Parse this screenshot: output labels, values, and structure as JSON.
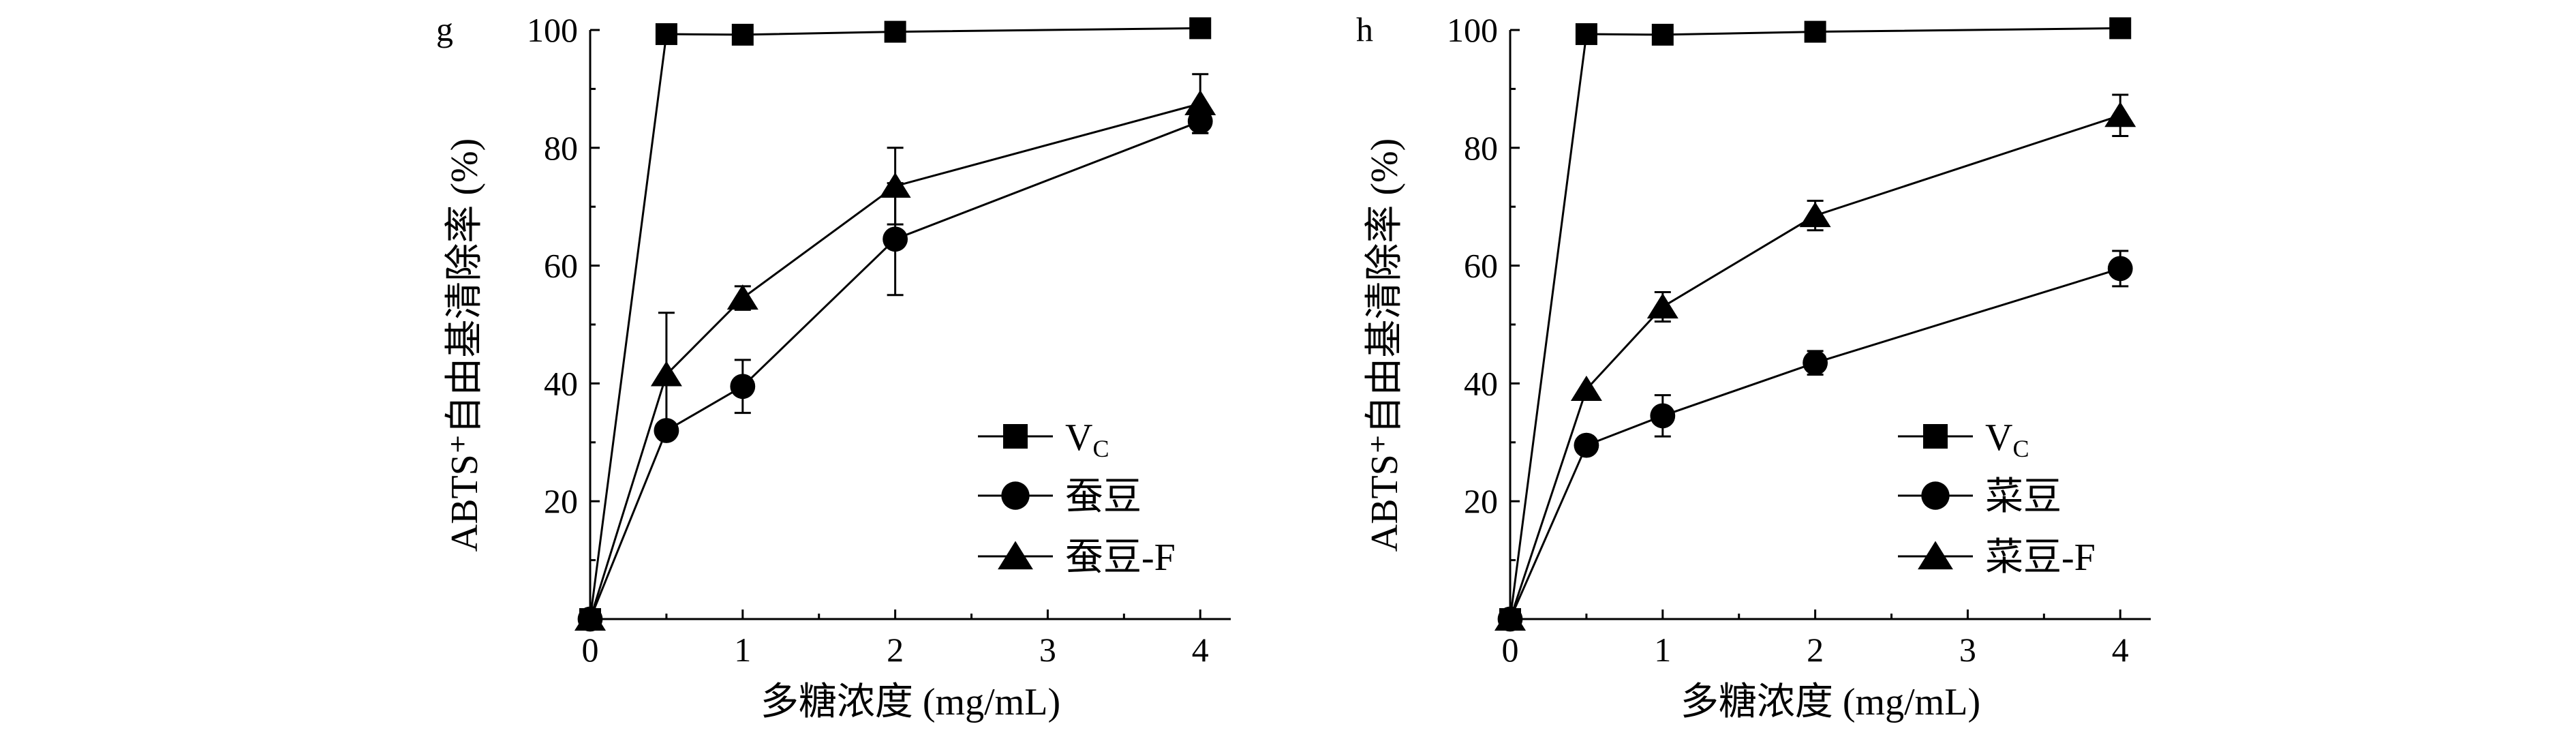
{
  "chart_data": [
    {
      "panel": "g",
      "type": "line",
      "title": "",
      "xlabel": "多糖浓度 (mg/mL)",
      "ylabel": "ABTS⁺自由基清除率 (%)",
      "xlim": [
        0,
        4.2
      ],
      "ylim": [
        0,
        100
      ],
      "xticks": [
        0,
        1,
        2,
        3,
        4
      ],
      "yticks": [
        20,
        40,
        60,
        80,
        100
      ],
      "legend_position": "bottom-right",
      "series": [
        {
          "name": "V",
          "name_sub": "C",
          "marker": "square",
          "x": [
            0,
            0.5,
            1,
            2,
            4
          ],
          "y": [
            0,
            99.3,
            99.2,
            99.7,
            100.3
          ],
          "err": [
            0,
            0,
            0,
            0,
            0
          ]
        },
        {
          "name": "蚕豆",
          "marker": "circle",
          "x": [
            0,
            0.5,
            1,
            2,
            4
          ],
          "y": [
            0,
            32,
            39.5,
            64.5,
            84.5
          ],
          "err": [
            0,
            0,
            4.5,
            9.5,
            2
          ]
        },
        {
          "name": "蚕豆-F",
          "marker": "triangle",
          "x": [
            0,
            0.5,
            1,
            2,
            4
          ],
          "y": [
            0,
            41.5,
            54.5,
            73.5,
            87.5
          ],
          "err": [
            0,
            10.5,
            2,
            6.5,
            5
          ]
        }
      ]
    },
    {
      "panel": "h",
      "type": "line",
      "title": "",
      "xlabel": "多糖浓度 (mg/mL)",
      "ylabel": "ABTS⁺自由基清除率 (%)",
      "xlim": [
        0,
        4.2
      ],
      "ylim": [
        0,
        100
      ],
      "xticks": [
        0,
        1,
        2,
        3,
        4
      ],
      "yticks": [
        20,
        40,
        60,
        80,
        100
      ],
      "legend_position": "bottom-right",
      "series": [
        {
          "name": "V",
          "name_sub": "C",
          "marker": "square",
          "x": [
            0,
            0.5,
            1,
            2,
            4
          ],
          "y": [
            0,
            99.3,
            99.2,
            99.7,
            100.3
          ],
          "err": [
            0,
            0,
            0,
            0,
            0
          ]
        },
        {
          "name": "菜豆",
          "marker": "circle",
          "x": [
            0,
            0.5,
            1,
            2,
            4
          ],
          "y": [
            0,
            29.5,
            34.5,
            43.5,
            59.5
          ],
          "err": [
            0,
            0,
            3.5,
            2,
            3
          ]
        },
        {
          "name": "菜豆-F",
          "marker": "triangle",
          "x": [
            0,
            0.5,
            1,
            2,
            4
          ],
          "y": [
            0,
            39,
            53,
            68.5,
            85.5
          ],
          "err": [
            0,
            0,
            2.5,
            2.5,
            3.5
          ]
        }
      ]
    }
  ]
}
